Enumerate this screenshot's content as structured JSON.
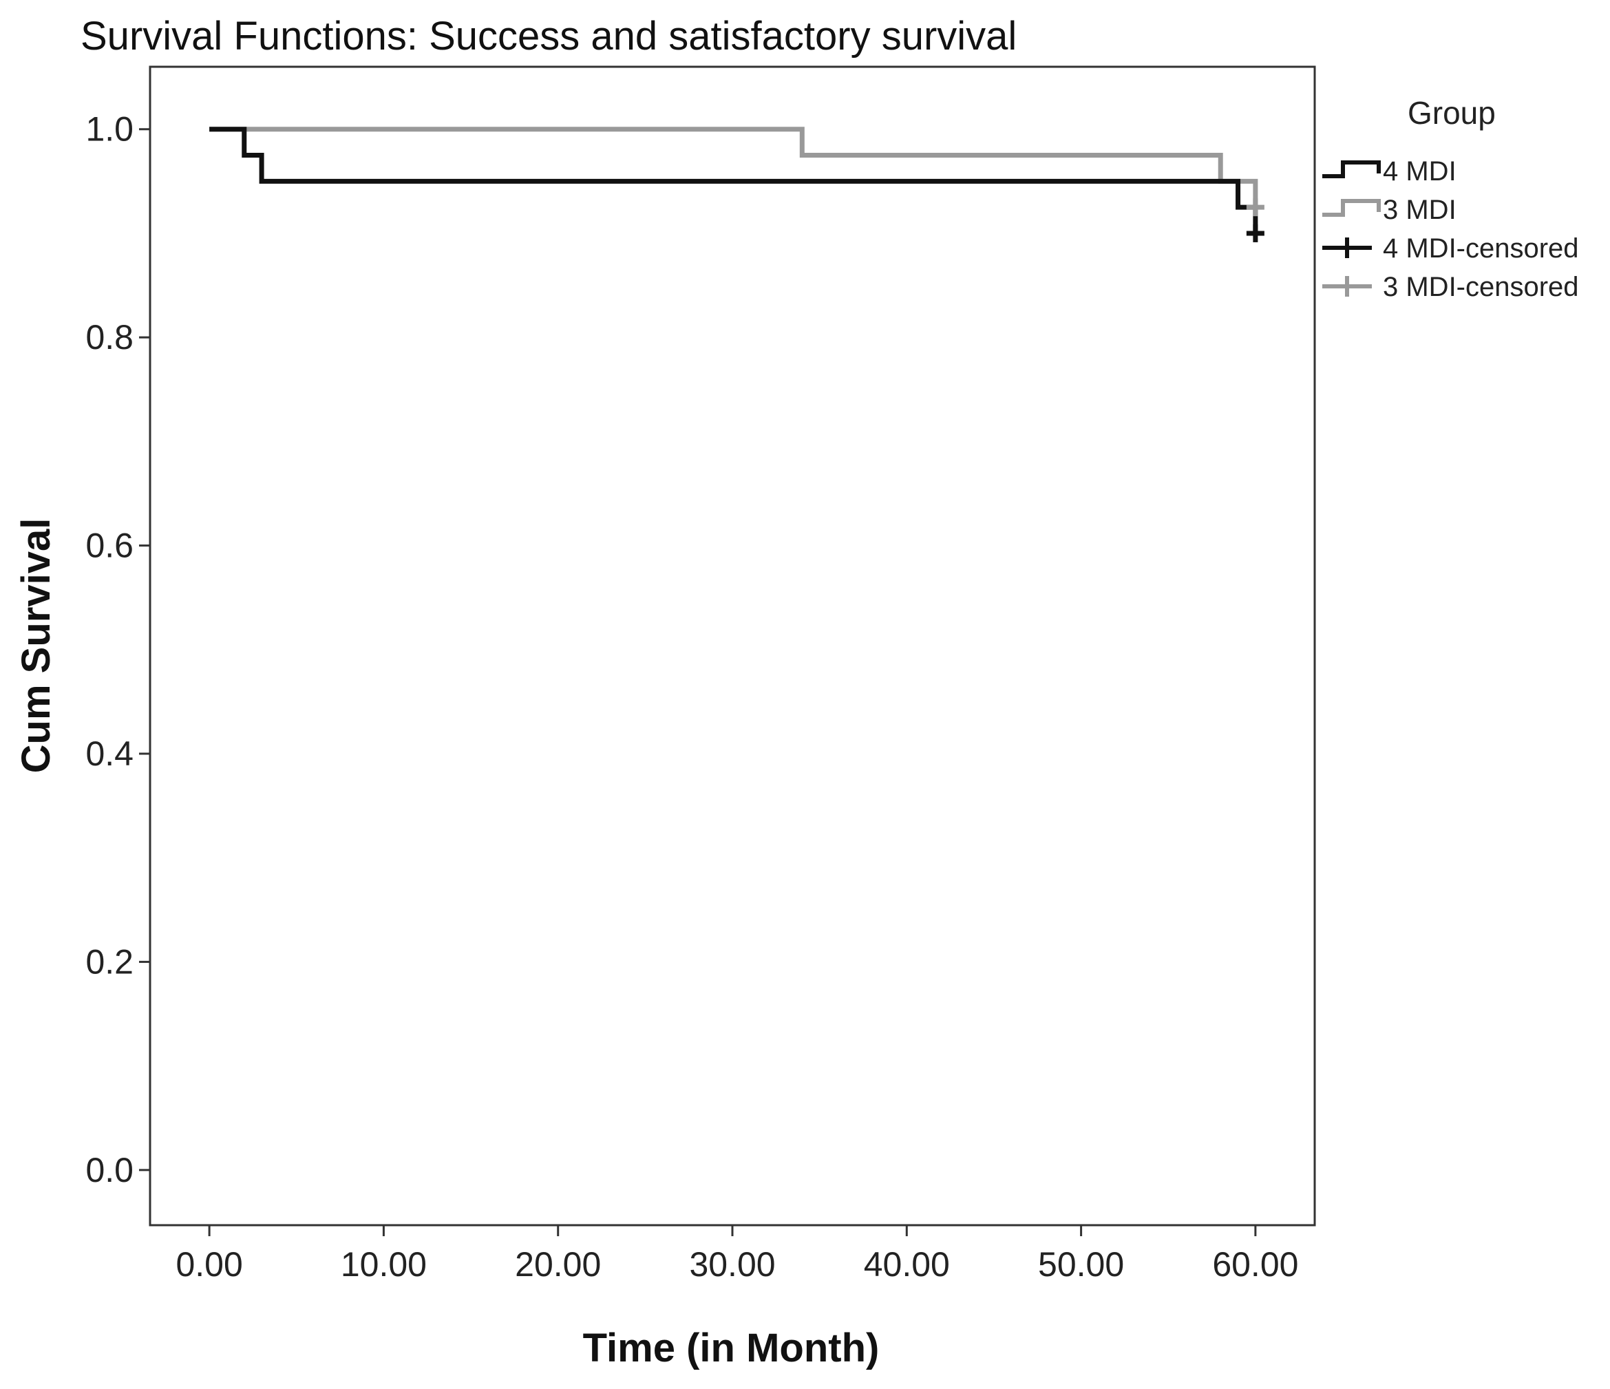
{
  "chart_data": {
    "type": "line",
    "step": true,
    "title": "Survival Functions: Success and satisfactory survival",
    "xlabel": "Time (in Month)",
    "ylabel": "Cum Survival",
    "xlim": [
      -3.4,
      63.4
    ],
    "ylim": [
      -0.053,
      1.06
    ],
    "xticks": [
      0,
      10,
      20,
      30,
      40,
      50,
      60
    ],
    "xtick_labels": [
      "0.00",
      "10.00",
      "20.00",
      "30.00",
      "40.00",
      "50.00",
      "60.00"
    ],
    "yticks": [
      0,
      0.2,
      0.4,
      0.6,
      0.8,
      1.0
    ],
    "ytick_labels": [
      "0.0",
      "0.2",
      "0.4",
      "0.6",
      "0.8",
      "1.0"
    ],
    "grid": false,
    "legend_title": "Group",
    "legend_position": "right",
    "series": [
      {
        "name": "4 MDI",
        "color": "#111111",
        "x": [
          0,
          2,
          3,
          59,
          60
        ],
        "y": [
          1.0,
          0.975,
          0.95,
          0.925,
          0.9
        ]
      },
      {
        "name": "3 MDI",
        "color": "#999999",
        "x": [
          0,
          34,
          58,
          60
        ],
        "y": [
          1.0,
          0.975,
          0.95,
          0.925
        ]
      }
    ],
    "censored": [
      {
        "name": "4 MDI-censored",
        "color": "#111111",
        "x": [
          60
        ],
        "y": [
          0.9
        ]
      },
      {
        "name": "3 MDI-censored",
        "color": "#999999",
        "x": [
          60
        ],
        "y": [
          0.925
        ]
      }
    ]
  }
}
